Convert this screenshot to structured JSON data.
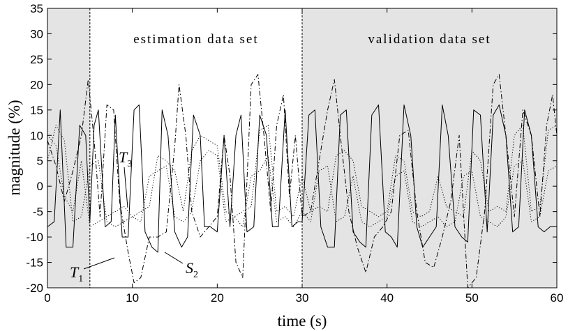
{
  "chart_data": {
    "type": "line",
    "xlabel": "time (s)",
    "ylabel": "magnitude  (%)",
    "xlim": [
      0,
      60
    ],
    "ylim": [
      -20,
      35
    ],
    "x_ticks": [
      0,
      10,
      20,
      30,
      40,
      50,
      60
    ],
    "y_ticks": [
      -20,
      -15,
      -10,
      -5,
      0,
      5,
      10,
      15,
      20,
      25,
      30,
      35
    ],
    "grid": false,
    "regions": [
      {
        "x_start": 0,
        "x_end": 5,
        "shaded": true,
        "label": ""
      },
      {
        "x_start": 5,
        "x_end": 30,
        "shaded": false,
        "label": "estimation data set"
      },
      {
        "x_start": 30,
        "x_end": 60,
        "shaded": true,
        "label": "validation data set"
      }
    ],
    "region_boundaries": [
      5,
      30
    ],
    "series": [
      {
        "name": "",
        "style": "solid",
        "x": [
          0,
          0.8,
          1.5,
          2.2,
          3.0,
          3.8,
          4.5,
          5.0,
          5.5,
          6.0,
          6.8,
          7.5,
          8.0,
          8.8,
          9.5,
          10.2,
          10.8,
          11.5,
          12.3,
          13.0,
          13.5,
          14.2,
          15.0,
          15.8,
          16.5,
          17.2,
          18.0,
          18.5,
          19.2,
          20.0,
          20.8,
          21.5,
          22.2,
          22.8,
          23.5,
          24.3,
          25.0,
          25.8,
          26.5,
          27.2,
          28.0,
          28.8,
          29.5,
          30.0,
          30.8,
          31.5,
          32.2,
          33.0,
          33.8,
          34.5,
          35.2,
          36.0,
          36.8,
          37.5,
          38.2,
          39.0,
          39.8,
          40.5,
          41.2,
          42.0,
          42.8,
          43.5,
          44.2,
          45.0,
          45.8,
          46.5,
          47.2,
          48.0,
          48.8,
          49.5,
          50.2,
          51.0,
          51.8,
          52.5,
          53.2,
          54.0,
          54.8,
          55.5,
          56.2,
          57.0,
          57.8,
          58.5,
          59.2,
          60.0
        ],
        "values": [
          -8,
          -7,
          15,
          -12,
          -12,
          12,
          10,
          -7,
          12,
          15,
          -8,
          -7,
          14,
          -10,
          -10,
          15,
          16,
          -9,
          -12,
          -13,
          15,
          10,
          -9,
          -12,
          -10,
          14,
          10,
          -8,
          -8,
          -9,
          10,
          -8,
          10,
          14,
          -9,
          -8,
          14,
          10,
          -8,
          -8,
          15,
          -8,
          -7,
          -7,
          14,
          15,
          -8,
          -12,
          -12,
          14,
          15,
          -9,
          -11,
          -12,
          14,
          16,
          -9,
          -10,
          -12,
          16,
          10,
          -8,
          -12,
          -10,
          -8,
          16,
          10,
          -8,
          -10,
          -11,
          15,
          14,
          -9,
          14,
          16,
          10,
          -9,
          -8,
          15,
          10,
          -8,
          -9,
          -8,
          -8
        ]
      },
      {
        "name": "",
        "style": "dashdot",
        "x": [
          0,
          1.0,
          2.0,
          3.0,
          4.0,
          4.8,
          5.5,
          6.2,
          7.0,
          7.8,
          8.5,
          9.5,
          10.2,
          11.0,
          12.0,
          13.0,
          14.0,
          15.0,
          15.5,
          16.3,
          17.0,
          18.0,
          19.0,
          20.0,
          20.8,
          21.5,
          22.2,
          23.0,
          24.0,
          24.8,
          25.5,
          26.3,
          27.0,
          27.8,
          28.5,
          29.2,
          30.0,
          31.0,
          32.0,
          33.0,
          33.8,
          34.5,
          35.5,
          36.5,
          37.5,
          38.5,
          39.5,
          40.5,
          41.5,
          42.5,
          43.5,
          44.5,
          45.5,
          46.5,
          47.5,
          48.5,
          49.5,
          50.5,
          51.5,
          52.5,
          53.2,
          54.0,
          55.0,
          56.0,
          57.0,
          58.0,
          58.8,
          59.5,
          60.0
        ],
        "values": [
          9,
          4,
          -3,
          3,
          10,
          21,
          9,
          -6,
          16,
          15,
          -3,
          -13,
          -19,
          -18,
          -10,
          -10,
          -9,
          8,
          20,
          10,
          -5,
          -10,
          -8,
          -6,
          10,
          2,
          -15,
          -18,
          20,
          22,
          10,
          -5,
          12,
          18,
          -2,
          10,
          -6,
          -5,
          5,
          15,
          21,
          10,
          -5,
          -12,
          -17,
          -10,
          -8,
          -5,
          10,
          11,
          -5,
          -15,
          -16,
          -10,
          -3,
          10,
          -20,
          -18,
          -5,
          20,
          22,
          10,
          -6,
          15,
          10,
          -6,
          12,
          18,
          10
        ]
      },
      {
        "name": "",
        "style": "dotted",
        "x": [
          0,
          1.0,
          2.0,
          3.0,
          4.0,
          5.0,
          6.0,
          7.0,
          8.0,
          9.0,
          10.0,
          11.0,
          12.0,
          13.0,
          14.0,
          15.0,
          16.0,
          17.0,
          18.0,
          19.0,
          20.0,
          21.0,
          22.0,
          23.0,
          24.0,
          25.0,
          26.0,
          27.0,
          28.0,
          29.0,
          30.0,
          31.0,
          32.0,
          33.0,
          34.0,
          35.0,
          36.0,
          37.0,
          38.0,
          39.0,
          40.0,
          41.0,
          42.0,
          43.0,
          44.0,
          45.0,
          46.0,
          47.0,
          48.0,
          49.0,
          50.0,
          51.0,
          52.0,
          53.0,
          54.0,
          55.0,
          56.0,
          57.0,
          58.0,
          59.0,
          60.0
        ],
        "values": [
          10,
          8,
          -2,
          -5,
          5,
          -8,
          -7,
          -6,
          -5,
          -4,
          -6,
          -5,
          -4,
          6,
          5,
          3,
          -5,
          7,
          10,
          9,
          8,
          -5,
          -6,
          -5,
          -4,
          11,
          12,
          -5,
          -4,
          -6,
          2,
          -5,
          -4,
          -5,
          6,
          7,
          5,
          -4,
          -5,
          -6,
          -5,
          6,
          5,
          -5,
          -6,
          -5,
          2,
          -4,
          -5,
          -6,
          7,
          5,
          -5,
          -4,
          -5,
          10,
          12,
          -5,
          -4,
          11,
          12
        ]
      },
      {
        "name": "",
        "style": "dotted",
        "x": [
          0,
          1.0,
          2.0,
          3.0,
          4.0,
          5.0,
          6.0,
          7.0,
          8.0,
          9.0,
          10.0,
          11.0,
          12.0,
          13.0,
          14.0,
          15.0,
          16.0,
          17.0,
          18.0,
          19.0,
          20.0,
          21.0,
          22.0,
          23.0,
          24.0,
          25.0,
          26.0,
          27.0,
          28.0,
          29.0,
          30.0,
          31.0,
          32.0,
          33.0,
          34.0,
          35.0,
          36.0,
          37.0,
          38.0,
          39.0,
          40.0,
          41.0,
          42.0,
          43.0,
          44.0,
          45.0,
          46.0,
          47.0,
          48.0,
          49.0,
          50.0,
          51.0,
          52.0,
          53.0,
          54.0,
          55.0,
          56.0,
          57.0,
          58.0,
          59.0,
          60.0
        ],
        "values": [
          5,
          12,
          9,
          -7,
          -6,
          4,
          5,
          -7,
          -8,
          -7,
          -6,
          -7,
          2,
          3,
          4,
          -6,
          -7,
          -5,
          5,
          7,
          6,
          -7,
          -6,
          -8,
          2,
          3,
          6,
          -7,
          -6,
          -8,
          -5,
          -7,
          3,
          4,
          -7,
          -6,
          2,
          -7,
          -8,
          -7,
          -6,
          2,
          3,
          -7,
          -8,
          -7,
          -6,
          -8,
          -7,
          2,
          3,
          -6,
          -7,
          -8,
          -6,
          4,
          5,
          -7,
          -6,
          3,
          4
        ]
      }
    ],
    "annotations": [
      {
        "base": "T",
        "sub": "3"
      },
      {
        "base": "T",
        "sub": "1"
      },
      {
        "base": "S",
        "sub": "2"
      }
    ]
  }
}
